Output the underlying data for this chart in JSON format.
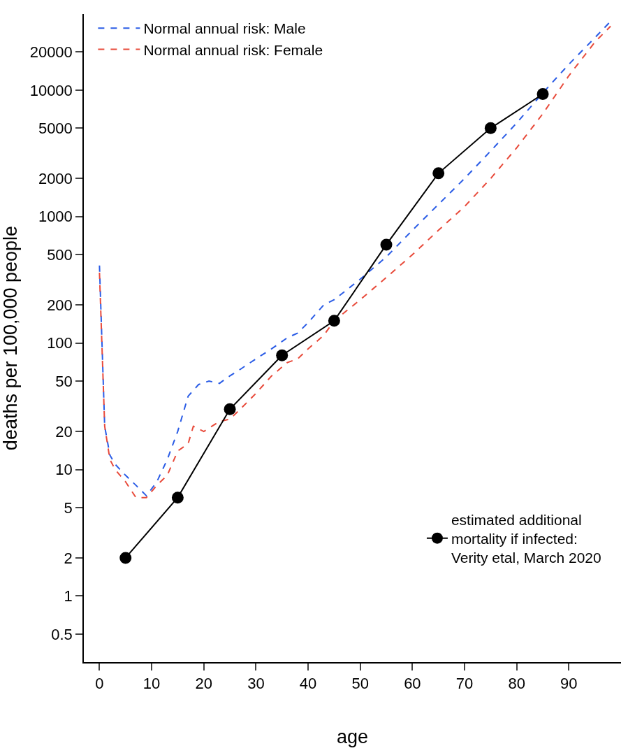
{
  "chart_data": {
    "type": "line",
    "xlabel": "age",
    "ylabel": "deaths per 100,000 people",
    "log": "y",
    "xlim": [
      -3,
      100
    ],
    "xticks": [
      0,
      10,
      20,
      30,
      40,
      50,
      60,
      70,
      80,
      90
    ],
    "ylim": [
      0.3,
      40000
    ],
    "yticks": [
      0.5,
      1,
      2,
      5,
      10,
      20,
      50,
      100,
      200,
      500,
      1000,
      2000,
      5000,
      10000,
      20000
    ],
    "legend": "top",
    "series": [
      {
        "name": "Normal annual risk: Male",
        "color": "#2a5ce6",
        "line_style": "dashed",
        "marker": "none",
        "x": [
          0,
          1,
          2,
          3,
          5,
          7,
          9,
          11,
          13,
          15,
          17,
          19,
          21,
          23,
          25,
          27,
          30,
          33,
          36,
          38,
          40,
          43,
          45,
          50,
          55,
          60,
          65,
          70,
          75,
          80,
          85,
          90,
          95,
          98
        ],
        "values": [
          410,
          22,
          13,
          11,
          9,
          7.5,
          6.2,
          8,
          12,
          20,
          38,
          47,
          50,
          48,
          55,
          62,
          75,
          90,
          110,
          120,
          145,
          200,
          220,
          320,
          480,
          780,
          1250,
          2000,
          3300,
          5500,
          9500,
          16000,
          26000,
          35000
        ]
      },
      {
        "name": "Normal annual risk: Female",
        "color": "#e84a3a",
        "line_style": "dashed",
        "marker": "none",
        "x": [
          0,
          1,
          2,
          3,
          5,
          7,
          9,
          11,
          13,
          15,
          17,
          18,
          20,
          23,
          25,
          27,
          30,
          33,
          36,
          38,
          40,
          43,
          45,
          50,
          55,
          60,
          65,
          70,
          75,
          80,
          85,
          90,
          95,
          98
        ],
        "values": [
          360,
          22,
          12,
          10,
          8,
          6,
          6,
          7.5,
          9,
          14,
          16,
          22,
          20,
          24,
          25,
          30,
          40,
          55,
          70,
          75,
          90,
          115,
          150,
          220,
          330,
          500,
          780,
          1200,
          2000,
          3500,
          6500,
          13000,
          24000,
          32000
        ]
      },
      {
        "name": "estimated additional\nmortality if infected:\nVerity etal, March 2020",
        "color": "#000000",
        "line_style": "solid",
        "marker": "circle",
        "x": [
          5,
          15,
          25,
          35,
          45,
          55,
          65,
          75,
          85
        ],
        "values": [
          2,
          6,
          30,
          80,
          150,
          600,
          2200,
          5000,
          9300
        ]
      }
    ]
  }
}
